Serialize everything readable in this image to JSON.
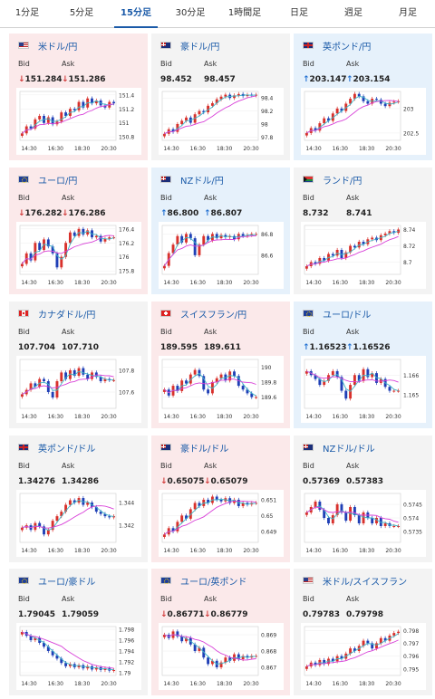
{
  "tabs": [
    {
      "label": "1分足",
      "active": false
    },
    {
      "label": "5分足",
      "active": false
    },
    {
      "label": "15分足",
      "active": true
    },
    {
      "label": "30分足",
      "active": false
    },
    {
      "label": "1時間足",
      "active": false
    },
    {
      "label": "日足",
      "active": false
    },
    {
      "label": "週足",
      "active": false
    },
    {
      "label": "月足",
      "active": false
    }
  ],
  "labels": {
    "bid": "Bid",
    "ask": "Ask"
  },
  "x_ticks": [
    "14:30",
    "16:30",
    "18:30",
    "20:30"
  ],
  "colors": {
    "down_bg": "#fbe9ea",
    "up_bg": "#e6f1fb",
    "neutral_bg": "#f3f3f3",
    "link": "#1a5aa8",
    "candle_up": "#d8312c",
    "candle_down": "#1f3fb6",
    "ma_short": "#3fb7c8",
    "ma_long": "#d840d8"
  },
  "cards": [
    {
      "name": "usd-jpy",
      "pair": "米ドル/円",
      "flag": "us-flag-icon",
      "state": "down",
      "bid_arrow": "↓",
      "bid": "151.284",
      "ask_arrow": "↓",
      "ask": "151.286",
      "yticks": [
        "151.4",
        "151.2",
        "151",
        "150.8"
      ],
      "ylim": [
        150.75,
        151.45
      ],
      "chart_data": {
        "type": "candlestick",
        "close": [
          150.85,
          150.95,
          150.92,
          151.05,
          151.1,
          151.0,
          151.08,
          150.98,
          151.02,
          151.15,
          151.1,
          151.2,
          151.18,
          151.3,
          151.22,
          151.35,
          151.28,
          151.32,
          151.25,
          151.22,
          151.3,
          151.28
        ]
      }
    },
    {
      "name": "aud-jpy",
      "pair": "豪ドル/円",
      "flag": "au-flag-icon",
      "state": "neutral",
      "bid_arrow": "",
      "bid": "98.452",
      "ask_arrow": "",
      "ask": "98.457",
      "yticks": [
        "98.4",
        "98.2",
        "98",
        "97.8"
      ],
      "ylim": [
        97.75,
        98.5
      ],
      "chart_data": {
        "type": "candlestick",
        "close": [
          97.85,
          97.92,
          97.88,
          98.0,
          98.05,
          98.1,
          98.02,
          98.15,
          98.2,
          98.18,
          98.28,
          98.32,
          98.38,
          98.42,
          98.45,
          98.4,
          98.44,
          98.46,
          98.43,
          98.45,
          98.44,
          98.45
        ]
      }
    },
    {
      "name": "gbp-jpy",
      "pair": "英ポンド/円",
      "flag": "gb-flag-icon",
      "state": "up",
      "bid_arrow": "↑",
      "bid": "203.147",
      "ask_arrow": "↑",
      "ask": "203.154",
      "yticks": [
        "203",
        "202.5"
      ],
      "ylim": [
        202.35,
        203.35
      ],
      "chart_data": {
        "type": "candlestick",
        "close": [
          202.5,
          202.6,
          202.55,
          202.7,
          202.8,
          202.75,
          202.9,
          203.0,
          202.95,
          203.1,
          203.2,
          203.3,
          203.25,
          203.15,
          203.1,
          203.2,
          203.18,
          203.1,
          203.05,
          203.12,
          203.14,
          203.15
        ]
      }
    },
    {
      "name": "eur-jpy",
      "pair": "ユーロ/円",
      "flag": "eu-flag-icon",
      "state": "down",
      "bid_arrow": "↓",
      "bid": "176.282",
      "ask_arrow": "↓",
      "ask": "176.286",
      "yticks": [
        "176.4",
        "176.2",
        "176",
        "175.8"
      ],
      "ylim": [
        175.75,
        176.45
      ],
      "chart_data": {
        "type": "candlestick",
        "close": [
          175.9,
          176.05,
          175.95,
          176.2,
          176.1,
          176.25,
          176.15,
          176.05,
          175.85,
          176.0,
          176.2,
          176.35,
          176.3,
          176.4,
          176.32,
          176.38,
          176.28,
          176.3,
          176.22,
          176.26,
          176.28,
          176.28
        ]
      }
    },
    {
      "name": "nzd-jpy",
      "pair": "NZドル/円",
      "flag": "nz-flag-icon",
      "state": "up",
      "bid_arrow": "↑",
      "bid": "86.800",
      "ask_arrow": "↑",
      "ask": "86.807",
      "yticks": [
        "86.8",
        "86.6"
      ],
      "ylim": [
        86.42,
        86.88
      ],
      "chart_data": {
        "type": "candlestick",
        "close": [
          86.5,
          86.62,
          86.7,
          86.78,
          86.72,
          86.8,
          86.76,
          86.6,
          86.7,
          86.78,
          86.74,
          86.8,
          86.76,
          86.79,
          86.77,
          86.78,
          86.75,
          86.8,
          86.78,
          86.79,
          86.8,
          86.8
        ]
      }
    },
    {
      "name": "zar-jpy",
      "pair": "ランド/円",
      "flag": "za-flag-icon",
      "state": "neutral",
      "bid_arrow": "",
      "bid": "8.732",
      "ask_arrow": "",
      "ask": "8.741",
      "yticks": [
        "8.74",
        "8.72",
        "8.7"
      ],
      "ylim": [
        8.685,
        8.745
      ],
      "chart_data": {
        "type": "candlestick",
        "close": [
          8.695,
          8.7,
          8.698,
          8.705,
          8.702,
          8.71,
          8.708,
          8.715,
          8.705,
          8.712,
          8.72,
          8.718,
          8.725,
          8.722,
          8.728,
          8.73,
          8.727,
          8.733,
          8.735,
          8.738,
          8.736,
          8.74
        ]
      }
    },
    {
      "name": "cad-jpy",
      "pair": "カナダドル/円",
      "flag": "ca-flag-icon",
      "state": "neutral",
      "bid_arrow": "",
      "bid": "107.704",
      "ask_arrow": "",
      "ask": "107.710",
      "yticks": [
        "107.8",
        "107.6"
      ],
      "ylim": [
        107.45,
        107.9
      ],
      "chart_data": {
        "type": "candlestick",
        "close": [
          107.58,
          107.62,
          107.68,
          107.65,
          107.72,
          107.7,
          107.6,
          107.55,
          107.7,
          107.78,
          107.72,
          107.8,
          107.75,
          107.82,
          107.76,
          107.72,
          107.78,
          107.74,
          107.7,
          107.72,
          107.71,
          107.71
        ]
      }
    },
    {
      "name": "chf-jpy",
      "pair": "スイスフラン/円",
      "flag": "ch-flag-icon",
      "state": "down",
      "bid_arrow": "",
      "bid": "189.595",
      "ask_arrow": "",
      "ask": "189.611",
      "yticks": [
        "190",
        "189.8",
        "189.6"
      ],
      "ylim": [
        189.45,
        190.1
      ],
      "chart_data": {
        "type": "candlestick",
        "close": [
          189.7,
          189.62,
          189.75,
          189.68,
          189.82,
          189.78,
          189.9,
          189.96,
          189.88,
          189.7,
          189.65,
          189.8,
          189.85,
          189.9,
          189.82,
          189.94,
          189.88,
          189.75,
          189.7,
          189.65,
          189.6,
          189.6
        ]
      }
    },
    {
      "name": "eur-usd",
      "pair": "ユーロ/ドル",
      "flag": "eu-flag-icon",
      "state": "up",
      "bid_arrow": "↑",
      "bid": "1.16523",
      "ask_arrow": "↑",
      "ask": "1.16526",
      "yticks": [
        "1.166",
        "1.165"
      ],
      "ylim": [
        1.1643,
        1.1668
      ],
      "chart_data": {
        "type": "candlestick",
        "close": [
          1.1662,
          1.166,
          1.1658,
          1.1655,
          1.1657,
          1.166,
          1.1662,
          1.1659,
          1.1652,
          1.1648,
          1.1655,
          1.166,
          1.1657,
          1.1663,
          1.1659,
          1.1661,
          1.1656,
          1.1658,
          1.1654,
          1.1652,
          1.1652,
          1.1652
        ]
      }
    },
    {
      "name": "gbp-usd",
      "pair": "英ポンド/ドル",
      "flag": "gb-flag-icon",
      "state": "neutral",
      "bid_arrow": "",
      "bid": "1.34276",
      "ask_arrow": "",
      "ask": "1.34286",
      "yticks": [
        "1.344",
        "1.342"
      ],
      "ylim": [
        1.3405,
        1.3448
      ],
      "chart_data": {
        "type": "candlestick",
        "close": [
          1.3418,
          1.342,
          1.3416,
          1.3422,
          1.3419,
          1.3412,
          1.3416,
          1.3424,
          1.3428,
          1.3432,
          1.3438,
          1.3442,
          1.344,
          1.3444,
          1.3438,
          1.344,
          1.3436,
          1.3432,
          1.343,
          1.3428,
          1.3427,
          1.3428
        ]
      }
    },
    {
      "name": "aud-usd",
      "pair": "豪ドル/ドル",
      "flag": "au-flag-icon",
      "state": "down",
      "bid_arrow": "↓",
      "bid": "0.65075",
      "ask_arrow": "↓",
      "ask": "0.65079",
      "yticks": [
        "0.651",
        "0.65",
        "0.649"
      ],
      "ylim": [
        0.6483,
        0.6514
      ],
      "chart_data": {
        "type": "candlestick",
        "close": [
          0.6488,
          0.6492,
          0.649,
          0.6496,
          0.65,
          0.6498,
          0.6504,
          0.6508,
          0.6506,
          0.651,
          0.6508,
          0.6512,
          0.651,
          0.6509,
          0.6511,
          0.6508,
          0.651,
          0.6506,
          0.6508,
          0.6507,
          0.6508,
          0.6508
        ]
      }
    },
    {
      "name": "nzd-usd",
      "pair": "NZドル/ドル",
      "flag": "nz-flag-icon",
      "state": "neutral",
      "bid_arrow": "",
      "bid": "0.57369",
      "ask_arrow": "",
      "ask": "0.57383",
      "yticks": [
        "0.5745",
        "0.574",
        "0.5735"
      ],
      "ylim": [
        0.5731,
        0.5749
      ],
      "chart_data": {
        "type": "candlestick",
        "close": [
          0.5742,
          0.5744,
          0.5746,
          0.5743,
          0.574,
          0.5738,
          0.5741,
          0.5745,
          0.5742,
          0.5739,
          0.5744,
          0.5741,
          0.5738,
          0.5742,
          0.574,
          0.5738,
          0.574,
          0.5737,
          0.5738,
          0.5737,
          0.5737,
          0.5737
        ]
      }
    },
    {
      "name": "eur-aud",
      "pair": "ユーロ/豪ドル",
      "flag": "eu-flag-icon",
      "state": "neutral",
      "bid_arrow": "",
      "bid": "1.79045",
      "ask_arrow": "",
      "ask": "1.79059",
      "yticks": [
        "1.798",
        "1.796",
        "1.794",
        "1.792",
        "1.79"
      ],
      "ylim": [
        1.7895,
        1.7985
      ],
      "chart_data": {
        "type": "candlestick",
        "close": [
          1.7975,
          1.7968,
          1.796,
          1.7964,
          1.7955,
          1.7948,
          1.794,
          1.7932,
          1.7926,
          1.7918,
          1.7912,
          1.7916,
          1.791,
          1.7914,
          1.7908,
          1.7912,
          1.7906,
          1.791,
          1.7905,
          1.7908,
          1.7904,
          1.7905
        ]
      }
    },
    {
      "name": "eur-gbp",
      "pair": "ユーロ/英ポンド",
      "flag": "eu-flag-icon",
      "state": "down",
      "bid_arrow": "↓",
      "bid": "0.86771",
      "ask_arrow": "↓",
      "ask": "0.86779",
      "yticks": [
        "0.869",
        "0.868",
        "0.867"
      ],
      "ylim": [
        0.8665,
        0.8695
      ],
      "chart_data": {
        "type": "candlestick",
        "close": [
          0.869,
          0.8688,
          0.8692,
          0.8689,
          0.8686,
          0.8688,
          0.8684,
          0.868,
          0.8682,
          0.8676,
          0.8672,
          0.8674,
          0.867,
          0.8673,
          0.8676,
          0.8674,
          0.8678,
          0.8675,
          0.8677,
          0.8676,
          0.8677,
          0.8677
        ]
      }
    },
    {
      "name": "usd-chf",
      "pair": "米ドル/スイスフラン",
      "flag": "us-flag-icon",
      "state": "neutral",
      "bid_arrow": "",
      "bid": "0.79783",
      "ask_arrow": "",
      "ask": "0.79798",
      "yticks": [
        "0.798",
        "0.797",
        "0.796",
        "0.795"
      ],
      "ylim": [
        0.7945,
        0.7983
      ],
      "chart_data": {
        "type": "candlestick",
        "close": [
          0.7952,
          0.7955,
          0.7953,
          0.7957,
          0.7954,
          0.7958,
          0.7956,
          0.796,
          0.7958,
          0.7962,
          0.7966,
          0.7964,
          0.7968,
          0.7972,
          0.797,
          0.7966,
          0.797,
          0.7974,
          0.7972,
          0.7976,
          0.7978,
          0.7979
        ]
      }
    }
  ]
}
